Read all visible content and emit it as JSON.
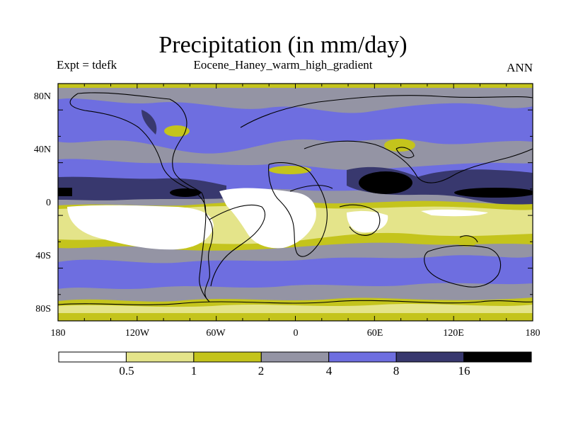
{
  "title": "Precipitation (in mm/day)",
  "left_label": "Expt = tdefk",
  "center_label": "Eocene_Haney_warm_high_gradient",
  "right_label": "ANN",
  "map": {
    "y_ticks": [
      "80N",
      "40N",
      "0",
      "40S",
      "80S"
    ],
    "x_ticks": [
      "180",
      "120W",
      "60W",
      "0",
      "60E",
      "120E",
      "180"
    ]
  },
  "legend": {
    "levels": [
      "0.5",
      "1",
      "2",
      "4",
      "8",
      "16"
    ],
    "colors": [
      "#ffffff",
      "#e4e48a",
      "#c4c41c",
      "#9494a4",
      "#6e6ee0",
      "#38386e",
      "#000000"
    ]
  }
}
